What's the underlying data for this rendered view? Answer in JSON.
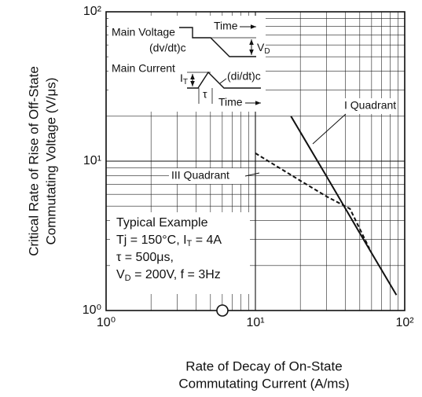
{
  "chart_data": {
    "type": "line",
    "log_x": true,
    "log_y": true,
    "grid": true,
    "xlim": [
      1,
      100
    ],
    "xticks": [
      {
        "value": 1,
        "label": "10⁰"
      },
      {
        "value": 10,
        "label": "10¹"
      },
      {
        "value": 100,
        "label": "10²"
      }
    ],
    "ylim": [
      1,
      100
    ],
    "yticks": [
      {
        "value": 1,
        "label": "10⁰"
      },
      {
        "value": 10,
        "label": "10¹"
      },
      {
        "value": 100,
        "label": "10²"
      }
    ],
    "x_label": [
      "Rate of Decay of On-State",
      "Commutating Current  (A/ms)"
    ],
    "y_label": [
      "Critical Rate of Rise of Off-State",
      "Commutating Voltage  (V/μs)"
    ],
    "series": [
      {
        "name": "I Quadrant",
        "color": "#111111",
        "dashed": false,
        "x": [
          17.3,
          30,
          50,
          88
        ],
        "values": [
          20,
          7.9,
          3.3,
          1.27
        ]
      },
      {
        "name": "III Quadrant",
        "color": "#111111",
        "dashed": true,
        "x": [
          10,
          20,
          30,
          43,
          58
        ],
        "values": [
          11.3,
          7.4,
          5.8,
          4.8,
          2.6
        ]
      }
    ],
    "typical_example": [
      [
        {
          "t": "Typical Example"
        }
      ],
      [
        {
          "t": "Tj = 150°C, I"
        },
        {
          "sub": "T"
        },
        {
          "t": " = 4A"
        }
      ],
      [
        {
          "t": "τ = 500μs,"
        }
      ],
      [
        {
          "t": "V"
        },
        {
          "sub": "D"
        },
        {
          "t": " = 200V, f = 3Hz"
        }
      ]
    ],
    "inset": {
      "main_voltage": "Main Voltage",
      "time_top": "Time",
      "dvdt": "(dv/dt)c",
      "vd": "V",
      "vd_sub": "D",
      "main_current": "Main Current",
      "it": "I",
      "it_sub": "T",
      "didt": "(di/dt)c",
      "tau": "τ",
      "time_bottom": "Time"
    }
  }
}
